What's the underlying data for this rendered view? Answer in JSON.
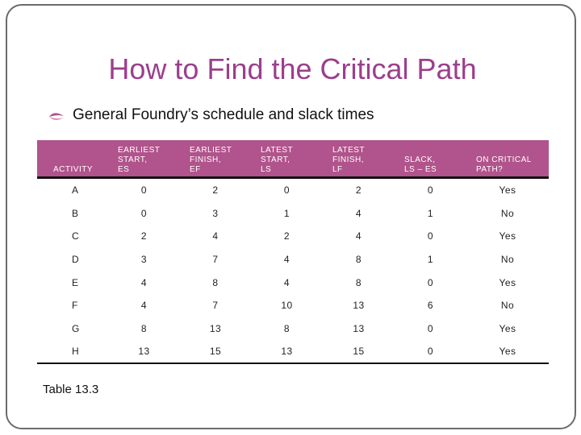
{
  "title": "How to Find the Critical Path",
  "bullet": "General Foundry’s schedule and slack times",
  "colors": {
    "title": "#9b3f8d",
    "header_bg": "#b1538c",
    "bullet": "#b1538c"
  },
  "table": {
    "headers": [
      [
        "ACTIVITY"
      ],
      [
        "EARLIEST",
        "START,",
        "ES"
      ],
      [
        "EARLIEST",
        "FINISH,",
        "EF"
      ],
      [
        "LATEST",
        "START,",
        "LS"
      ],
      [
        "LATEST",
        "FINISH,",
        "LF"
      ],
      [
        "SLACK,",
        "LS – ES"
      ],
      [
        "ON CRITICAL",
        "PATH?"
      ]
    ],
    "rows": [
      [
        "A",
        "0",
        "2",
        "0",
        "2",
        "0",
        "Yes"
      ],
      [
        "B",
        "0",
        "3",
        "1",
        "4",
        "1",
        "No"
      ],
      [
        "C",
        "2",
        "4",
        "2",
        "4",
        "0",
        "Yes"
      ],
      [
        "D",
        "3",
        "7",
        "4",
        "8",
        "1",
        "No"
      ],
      [
        "E",
        "4",
        "8",
        "4",
        "8",
        "0",
        "Yes"
      ],
      [
        "F",
        "4",
        "7",
        "10",
        "13",
        "6",
        "No"
      ],
      [
        "G",
        "8",
        "13",
        "8",
        "13",
        "0",
        "Yes"
      ],
      [
        "H",
        "13",
        "15",
        "13",
        "15",
        "0",
        "Yes"
      ]
    ]
  },
  "caption": "Table 13.3"
}
